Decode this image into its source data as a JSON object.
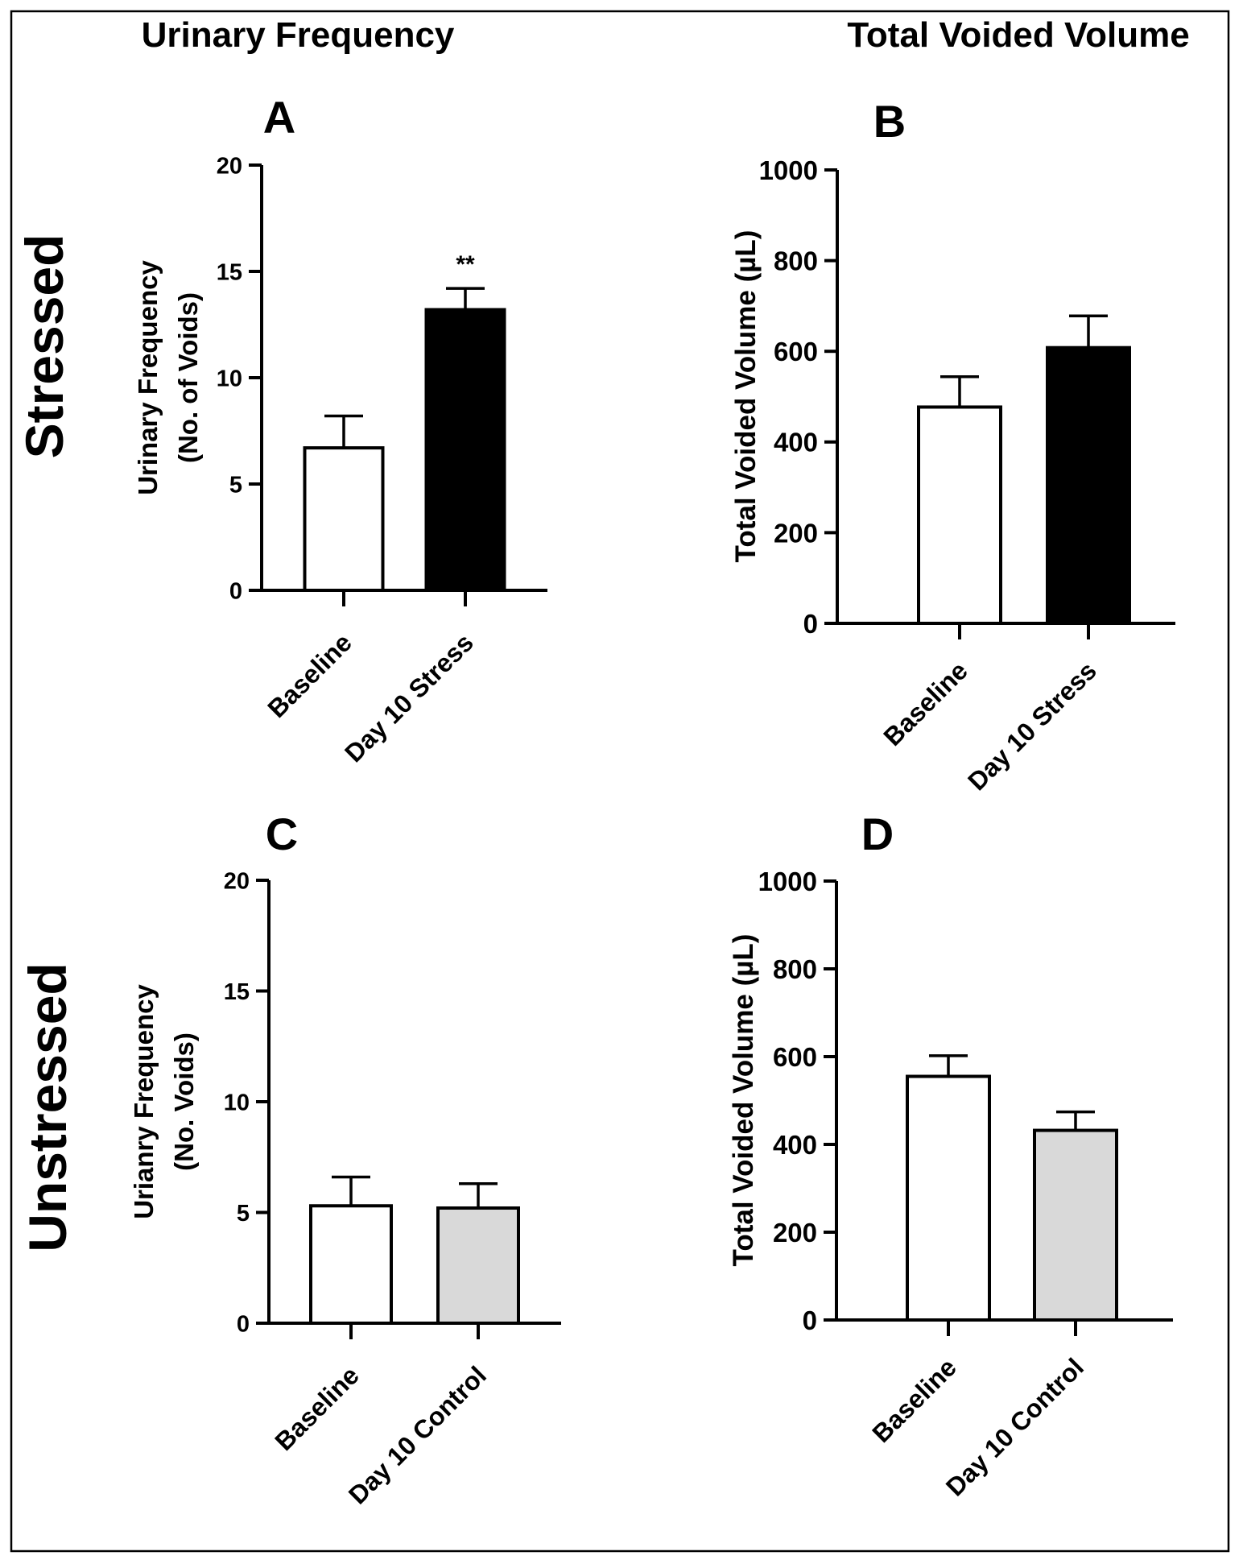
{
  "headers": {
    "col1": "Urinary Frequency",
    "col2": "Total Voided Volume",
    "row1": "Stressed",
    "row2": "Unstressed"
  },
  "colors": {
    "baseline_fill": "#ffffff",
    "stress_fill": "#000000",
    "control_fill": "#d9d9d9",
    "stroke": "#000000"
  },
  "chart_data": [
    {
      "panel": "A",
      "type": "bar",
      "categories": [
        "Baseline",
        "Day 10 Stress"
      ],
      "values": [
        6.7,
        13.2
      ],
      "errors": [
        1.5,
        1.0
      ],
      "fills": [
        "baseline_fill",
        "stress_fill"
      ],
      "ylabel_lines": [
        "Urinary Frequency",
        "(No. of Voids)"
      ],
      "ylim": [
        0,
        20
      ],
      "yticks": [
        0,
        5,
        10,
        15,
        20
      ],
      "annotations": [
        {
          "category": "Day 10 Stress",
          "text": "**"
        }
      ]
    },
    {
      "panel": "B",
      "type": "bar",
      "categories": [
        "Baseline",
        "Day 10 Stress"
      ],
      "values": [
        477,
        608
      ],
      "errors": [
        67,
        70
      ],
      "fills": [
        "baseline_fill",
        "stress_fill"
      ],
      "ylabel_lines": [
        "Total Voided Volume (µL)"
      ],
      "ylim": [
        0,
        1000
      ],
      "yticks": [
        0,
        200,
        400,
        600,
        800,
        1000
      ],
      "annotations": []
    },
    {
      "panel": "C",
      "type": "bar",
      "categories": [
        "Baseline",
        "Day 10 Control"
      ],
      "values": [
        5.3,
        5.2
      ],
      "errors": [
        1.3,
        1.1
      ],
      "fills": [
        "baseline_fill",
        "control_fill"
      ],
      "ylabel_lines": [
        "Urianry Frequency",
        "(No. Voids)"
      ],
      "ylim": [
        0,
        20
      ],
      "yticks": [
        0,
        5,
        10,
        15,
        20
      ],
      "annotations": []
    },
    {
      "panel": "D",
      "type": "bar",
      "categories": [
        "Baseline",
        "Day 10 Control"
      ],
      "values": [
        555,
        432
      ],
      "errors": [
        47,
        42
      ],
      "fills": [
        "baseline_fill",
        "control_fill"
      ],
      "ylabel_lines": [
        "Total Voided Volume (µL)"
      ],
      "ylim": [
        0,
        1000
      ],
      "yticks": [
        0,
        200,
        400,
        600,
        800,
        1000
      ],
      "annotations": []
    }
  ]
}
